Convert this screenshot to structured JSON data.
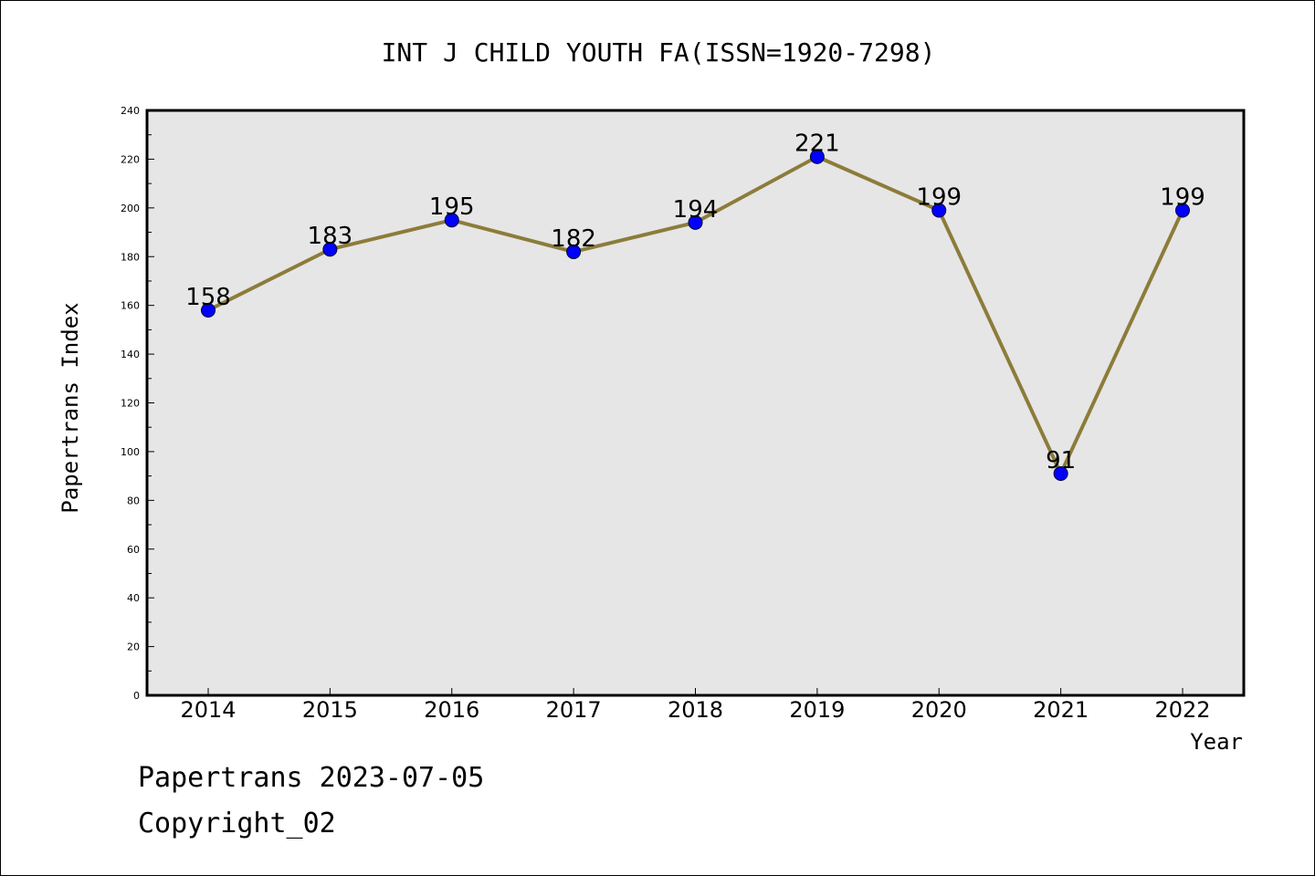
{
  "chart_data": {
    "type": "line",
    "title": "INT J CHILD YOUTH FA(ISSN=1920-7298)",
    "xlabel": "Year",
    "ylabel": "Papertrans Index",
    "categories": [
      "2014",
      "2015",
      "2016",
      "2017",
      "2018",
      "2019",
      "2020",
      "2021",
      "2022"
    ],
    "series": [
      {
        "values": [
          158,
          183,
          195,
          182,
          194,
          221,
          199,
          91,
          199
        ]
      }
    ],
    "data_labels": [
      "158",
      "183",
      "195",
      "182",
      "194",
      "221",
      "199",
      "91",
      "199"
    ],
    "ylim": [
      0,
      240
    ],
    "yticks": [
      0,
      20,
      40,
      60,
      80,
      100,
      120,
      140,
      160,
      180,
      200,
      220,
      240
    ],
    "ytick_labels": [
      "0",
      "20",
      "40",
      "60",
      "80",
      "100",
      "120",
      "140",
      "160",
      "180",
      "200",
      "220",
      "240"
    ],
    "line_color": "#8c7c3a",
    "marker_color": "#0000ff",
    "plot_background": "#e6e6e6",
    "grid": false,
    "legend": false
  },
  "footer": {
    "line1": "Papertrans 2023-07-05",
    "line2": "Copyright_02"
  }
}
